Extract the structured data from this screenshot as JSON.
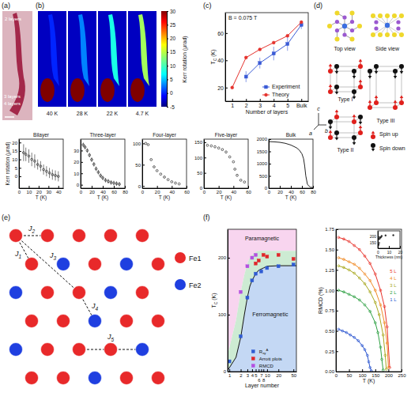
{
  "figure": {
    "panel_labels": [
      "(a)",
      "(b)",
      "(c)",
      "(d)",
      "(e)",
      "(f)"
    ],
    "a": {
      "labels": [
        "2 layers",
        "3 layers",
        "4 layers"
      ]
    },
    "b": {
      "temperatures": [
        "40 K",
        "28 K",
        "22 K",
        "4.7 K"
      ],
      "thin_kerr": [
        0,
        3,
        8,
        14
      ],
      "thick_kerr": [
        30,
        30,
        30,
        30
      ],
      "background_kerr": -3,
      "colorbar": {
        "title": "Kerr rotation (μrad)",
        "range": [
          -5,
          30
        ],
        "ticks": [
          -5,
          0,
          5,
          10,
          15,
          20,
          25,
          30
        ]
      }
    },
    "d": {
      "views": [
        "Top view",
        "Side view"
      ],
      "types": [
        "Type I",
        "Type II",
        "Type III"
      ],
      "axes": [
        "a",
        "b",
        "c"
      ],
      "legend": [
        {
          "name": "Spin up",
          "color": "#e0201c"
        },
        {
          "name": "Spin down",
          "color": "#111111"
        }
      ]
    },
    "e": {
      "bonds": [
        [
          {
            "t": "J"
          },
          {
            "t": "1",
            "sub": true
          }
        ],
        [
          {
            "t": "J"
          },
          {
            "t": "2",
            "sub": true
          }
        ],
        [
          {
            "t": "J"
          },
          {
            "t": "3",
            "sub": true
          }
        ],
        [
          {
            "t": "J"
          },
          {
            "t": "4",
            "sub": true
          }
        ],
        [
          {
            "t": "J"
          },
          {
            "t": "5",
            "sub": true
          }
        ]
      ],
      "legend": [
        {
          "name": "Fe1",
          "color": "#e8292a"
        },
        {
          "name": "Fe2",
          "color": "#1f3fe0"
        }
      ]
    }
  },
  "chart_data": [
    {
      "type": "line",
      "title": "B = 0.075 T",
      "categories": [
        "1",
        "2",
        "3",
        "4",
        "5",
        "Bulk"
      ],
      "x_label": "Number of layers",
      "y_label": [
        {
          "t": "T"
        },
        {
          "t": "C",
          "sub": true
        },
        {
          "t": " (K)"
        }
      ],
      "ylim": [
        10,
        75
      ],
      "yticks": [
        20,
        40,
        60
      ],
      "legend": "lower right",
      "series": [
        {
          "name": "Experiment",
          "color": "#3a5bd6",
          "marker": "square",
          "values": [
            null,
            28,
            38,
            45,
            52,
            66
          ],
          "errors": [
            null,
            4,
            4,
            5,
            5,
            3
          ]
        },
        {
          "name": "Theory",
          "color": "#e5322d",
          "marker": "circle",
          "values": [
            20,
            42,
            48,
            53,
            58,
            68
          ]
        }
      ]
    },
    {
      "type": "scatter",
      "title": "Bilayer",
      "x_label": "T (K)",
      "y_label": "Kerr rotation (μrad)",
      "marker": "open-circle",
      "color": "#222222",
      "xlim": [
        0,
        45
      ],
      "xticks": [
        0,
        10,
        20,
        30,
        40
      ],
      "ylim": [
        -7,
        22
      ],
      "yticks": [
        0,
        5,
        10,
        15,
        20
      ],
      "x": [
        4.7,
        7,
        10,
        13,
        16,
        19,
        22,
        25,
        28,
        31,
        34,
        37,
        40
      ],
      "values": [
        14,
        13,
        12,
        10,
        9,
        7,
        6,
        4,
        3,
        2,
        1,
        0.5,
        0
      ],
      "errors": [
        5,
        4,
        4,
        4,
        4,
        3,
        3,
        3,
        3,
        3,
        3,
        3,
        3
      ]
    },
    {
      "type": "scatter",
      "title": "Three-layer",
      "x_label": "T (K)",
      "marker": "open-circle",
      "color": "#222222",
      "xlim": [
        0,
        80
      ],
      "xticks": [
        0,
        20,
        40,
        60,
        80
      ],
      "ylim": [
        -3,
        40
      ],
      "yticks": [
        0,
        10,
        20,
        30
      ],
      "x": [
        4.7,
        8,
        12,
        16,
        20,
        24,
        28,
        32,
        36,
        40,
        45,
        50,
        55,
        60,
        65,
        70
      ],
      "values": [
        35,
        33,
        30,
        26,
        22,
        18,
        14,
        11,
        8,
        6,
        4,
        3,
        2,
        1.5,
        1,
        0.5
      ],
      "errors": [
        2,
        2,
        2,
        2,
        2,
        2,
        2,
        2,
        2,
        2,
        2,
        2,
        2,
        2,
        2,
        2
      ]
    },
    {
      "type": "scatter",
      "title": "Four-layer",
      "x_label": "T (K)",
      "marker": "open-circle",
      "color": "#222222",
      "xlim": [
        0,
        60
      ],
      "xticks": [
        0,
        20,
        40,
        60
      ],
      "ylim": [
        -5,
        110
      ],
      "yticks": [
        0,
        50,
        100
      ],
      "x": [
        4.7,
        8,
        12,
        16,
        20,
        25,
        30,
        35,
        40,
        45,
        50
      ],
      "values": [
        100,
        97,
        62,
        45,
        36,
        28,
        21,
        15,
        10,
        7,
        5
      ]
    },
    {
      "type": "scatter",
      "title": "Five-layer",
      "x_label": "T (K)",
      "marker": "open-circle",
      "color": "#222222",
      "xlim": [
        0,
        60
      ],
      "xticks": [
        0,
        20,
        40,
        60
      ],
      "ylim": [
        0,
        160
      ],
      "yticks": [
        0,
        50,
        100,
        150
      ],
      "x": [
        4.7,
        10,
        15,
        20,
        25,
        30,
        35,
        40,
        42,
        45,
        50,
        55
      ],
      "values": [
        140,
        138,
        135,
        131,
        126,
        118,
        102,
        86,
        62,
        42,
        26,
        20
      ]
    },
    {
      "type": "line",
      "title": "Bulk",
      "x_label": "T (K)",
      "color": "#222222",
      "xlim": [
        0,
        80
      ],
      "xticks": [
        0,
        20,
        40,
        60,
        80
      ],
      "ylim": [
        0,
        2000
      ],
      "yticks": [
        0,
        500,
        1000,
        1500,
        2000
      ],
      "x": [
        0,
        10,
        20,
        30,
        40,
        50,
        55,
        60,
        63,
        65,
        67,
        70,
        75,
        80
      ],
      "values": [
        1900,
        1890,
        1870,
        1830,
        1760,
        1650,
        1560,
        1400,
        1200,
        900,
        500,
        150,
        40,
        20
      ]
    },
    {
      "type": "scatter",
      "log": "x",
      "x_label": "Layer number",
      "y_label": [
        {
          "t": "T"
        },
        {
          "t": "C",
          "sub": true
        },
        {
          "t": " (K)"
        }
      ],
      "xlim": [
        0.9,
        60
      ],
      "xticks": [
        1,
        2,
        3,
        4,
        5,
        6,
        7,
        8,
        10,
        20,
        50
      ],
      "ylim": [
        0,
        250
      ],
      "yticks": [
        0,
        100,
        200
      ],
      "legend": "lower right",
      "regions": {
        "labels": [
          "Paramagnetic",
          "Ferromagnetic"
        ],
        "colors": [
          "#f8d5ef",
          "#cdebd3",
          "#c4d8f4"
        ],
        "x": [
          0.9,
          1.5,
          2,
          2.5,
          3,
          3.5,
          4,
          5,
          6,
          8,
          10,
          20,
          60
        ],
        "boundary": [
          2,
          25,
          60,
          100,
          130,
          150,
          160,
          172,
          178,
          182,
          185,
          186,
          186
        ],
        "upper": [
          30,
          90,
          140,
          170,
          190,
          200,
          205,
          210,
          212,
          212,
          212,
          212,
          212
        ]
      },
      "series": [
        {
          "name": [
            {
              "t": "R"
            },
            {
              "t": "xy",
              "sub": true
            },
            {
              "t": "A",
              "sup": true
            }
          ],
          "color": "#2f5bd3",
          "marker": "square",
          "x": [
            1,
            2,
            3,
            4,
            5,
            7,
            10,
            20,
            50
          ],
          "values": [
            18,
            62,
            130,
            160,
            172,
            176,
            182,
            185,
            188
          ]
        },
        {
          "name": "Arrott plots",
          "color": "#e0262a",
          "marker": "square",
          "x": [
            5,
            6,
            8,
            10,
            20,
            50
          ],
          "values": [
            190,
            195,
            205,
            202,
            205,
            198
          ]
        },
        {
          "name": "RMCD",
          "color": "#b34fe0",
          "marker": "square",
          "x": [
            2,
            3,
            4,
            5
          ],
          "values": [
            140,
            185,
            200,
            205
          ]
        }
      ]
    },
    {
      "type": "line",
      "x_label": "T (K)",
      "y_label": "RMCD (%)",
      "marker": "open-circle",
      "legend": "upper right",
      "xlim": [
        0,
        250
      ],
      "xticks": [
        0,
        50,
        100,
        150,
        200,
        250
      ],
      "ylim": [
        0,
        1.75
      ],
      "yticks": [
        {
          "value": 0,
          "label": "0.00"
        },
        {
          "value": 0.25,
          "label": "0.25"
        },
        {
          "value": 0.5,
          "label": "0.50"
        },
        {
          "value": 0.75,
          "label": "0.75"
        },
        {
          "value": 1,
          "label": "1.00"
        },
        {
          "value": 1.25,
          "label": "1.25"
        },
        {
          "value": 1.5,
          "label": "1.50"
        },
        {
          "value": 1.75,
          "label": "1.75"
        }
      ],
      "series": [
        {
          "name": "5 L",
          "color": "#e8322a",
          "x": [
            10,
            30,
            50,
            70,
            90,
            110,
            130,
            150,
            170,
            185,
            195,
            205
          ],
          "values": [
            1.65,
            1.63,
            1.6,
            1.55,
            1.5,
            1.42,
            1.33,
            1.2,
            1.0,
            0.8,
            0.55,
            0.05
          ]
        },
        {
          "name": "4 L",
          "color": "#f08a24",
          "x": [
            10,
            30,
            50,
            70,
            90,
            110,
            130,
            150,
            170,
            185,
            195,
            200
          ],
          "values": [
            1.4,
            1.38,
            1.35,
            1.32,
            1.27,
            1.2,
            1.12,
            1.0,
            0.82,
            0.6,
            0.35,
            0.05
          ]
        },
        {
          "name": "3 L",
          "color": "#a8a81e",
          "x": [
            10,
            30,
            50,
            70,
            90,
            110,
            130,
            150,
            165,
            180,
            188,
            192
          ],
          "values": [
            1.3,
            1.28,
            1.25,
            1.21,
            1.15,
            1.08,
            0.98,
            0.85,
            0.7,
            0.45,
            0.2,
            0.03
          ]
        },
        {
          "name": "2 L",
          "color": "#2ea043",
          "x": [
            10,
            30,
            50,
            70,
            90,
            110,
            130,
            150,
            160,
            170,
            175,
            180
          ],
          "values": [
            1.0,
            0.98,
            0.95,
            0.92,
            0.88,
            0.82,
            0.74,
            0.6,
            0.48,
            0.3,
            0.15,
            0.02
          ]
        },
        {
          "name": "1 L",
          "color": "#2a55d0",
          "x": [
            10,
            25,
            40,
            55,
            70,
            85,
            100,
            110,
            120,
            125,
            130,
            135
          ],
          "values": [
            0.52,
            0.5,
            0.48,
            0.45,
            0.42,
            0.38,
            0.32,
            0.27,
            0.2,
            0.12,
            0.05,
            0.01
          ]
        }
      ]
    },
    {
      "type": "scatter",
      "x_label": "Thickness (nm)",
      "marker": "circle",
      "color": "#222222",
      "xlim": [
        0,
        20
      ],
      "xticks": [
        0,
        10,
        20
      ],
      "ylim": [
        100,
        250
      ],
      "yticks": [
        150,
        200
      ],
      "x": [
        0.7,
        1.4,
        2.1,
        2.8,
        3.5,
        7,
        14
      ],
      "values": [
        130,
        180,
        190,
        195,
        205,
        210,
        212
      ]
    }
  ]
}
